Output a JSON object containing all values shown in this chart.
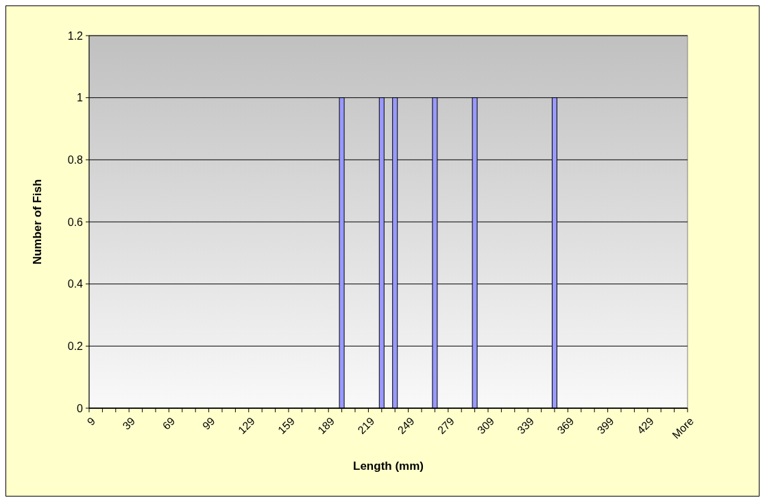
{
  "chart_data": {
    "type": "bar",
    "xlabel": "Length (mm)",
    "ylabel": "Number of Fish",
    "categories": [
      "9",
      null,
      null,
      "39",
      null,
      null,
      "69",
      null,
      null,
      "99",
      null,
      null,
      "129",
      null,
      null,
      "159",
      null,
      null,
      "189",
      null,
      null,
      "219",
      null,
      null,
      "249",
      null,
      null,
      "279",
      null,
      null,
      "309",
      null,
      null,
      "339",
      null,
      null,
      "369",
      null,
      null,
      "399",
      null,
      null,
      "429",
      null,
      null,
      "More"
    ],
    "values": [
      0,
      0,
      0,
      0,
      0,
      0,
      0,
      0,
      0,
      0,
      0,
      0,
      0,
      0,
      0,
      0,
      0,
      0,
      0,
      1,
      0,
      0,
      1,
      1,
      0,
      0,
      1,
      0,
      0,
      1,
      0,
      0,
      0,
      0,
      0,
      1,
      0,
      0,
      0,
      0,
      0,
      0,
      0,
      0,
      0,
      0
    ],
    "color": "#9999ff",
    "ylim": [
      0,
      1.2
    ],
    "yticks": [
      0,
      0.2,
      0.4,
      0.6,
      0.8,
      1,
      1.2
    ],
    "grid": "y"
  }
}
